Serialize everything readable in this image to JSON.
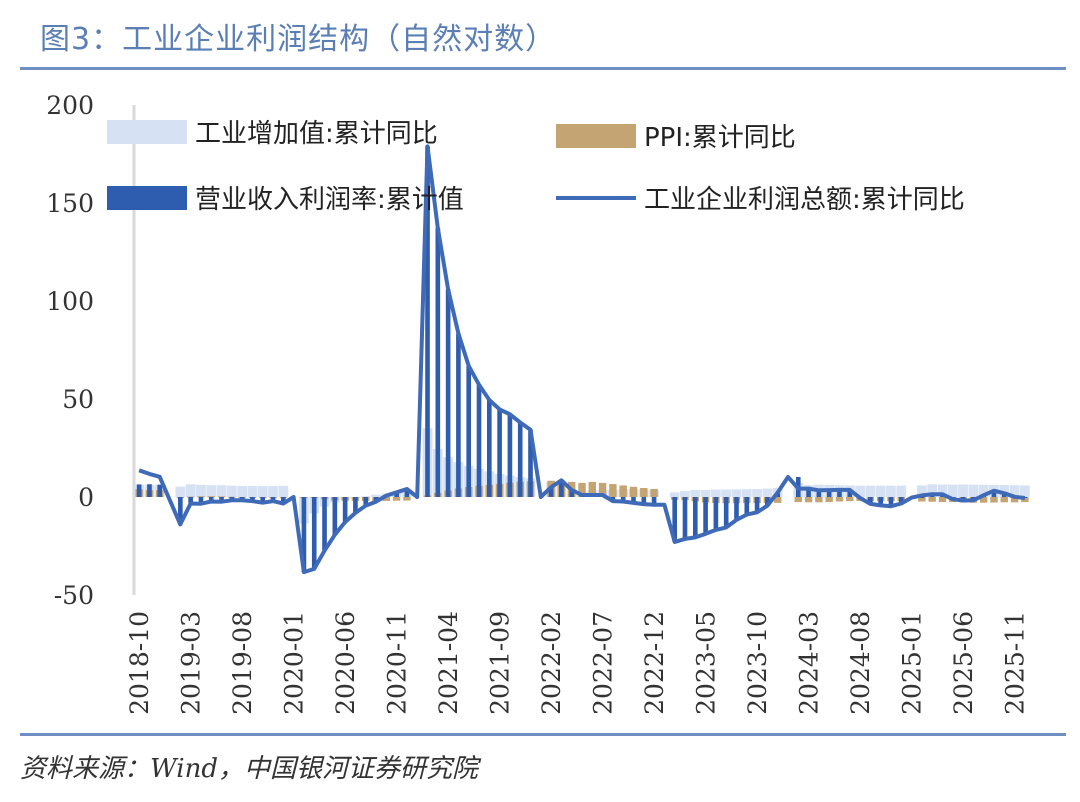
{
  "title": "图3：工业企业利润结构（自然对数）",
  "source": "资料来源：Wind，中国银河证券研究院",
  "colors": {
    "industrial_added_value": "#d6e2f3",
    "ppi": "#c4a472",
    "operating_margin": "#2e5cae",
    "total_profit": "#3f6ab8",
    "rule": "#6f8fc2",
    "axis": "#d9d9d9"
  },
  "chart_data": {
    "type": "bar",
    "x_tick_labels": [
      "2018-10",
      "2019-03",
      "2019-08",
      "2020-01",
      "2020-06",
      "2020-11",
      "2021-04",
      "2021-09",
      "2022-02",
      "2022-07",
      "2022-12",
      "2023-05",
      "2023-10",
      "2024-03",
      "2024-08",
      "2025-01",
      "2025-06",
      "2025-11"
    ],
    "y_tick_labels": [
      "200",
      "150",
      "100",
      "50",
      "0",
      "-50"
    ],
    "ylim": [
      -50,
      200
    ],
    "legend": {
      "added_value": "工业增加值:累计同比",
      "ppi": "PPI:累计同比",
      "margin": "营业收入利润率:累计值",
      "profit": "工业企业利润总额:累计同比"
    },
    "x": [
      "2018-10",
      "2018-11",
      "2018-12",
      "2019-01",
      "2019-02",
      "2019-03",
      "2019-04",
      "2019-05",
      "2019-06",
      "2019-07",
      "2019-08",
      "2019-09",
      "2019-10",
      "2019-11",
      "2019-12",
      "2020-01",
      "2020-02",
      "2020-03",
      "2020-04",
      "2020-05",
      "2020-06",
      "2020-07",
      "2020-08",
      "2020-09",
      "2020-10",
      "2020-11",
      "2020-12",
      "2021-01",
      "2021-02",
      "2021-03",
      "2021-04",
      "2021-05",
      "2021-06",
      "2021-07",
      "2021-08",
      "2021-09",
      "2021-10",
      "2021-11",
      "2021-12",
      "2022-01",
      "2022-02",
      "2022-03",
      "2022-04",
      "2022-05",
      "2022-06",
      "2022-07",
      "2022-08",
      "2022-09",
      "2022-10",
      "2022-11",
      "2022-12",
      "2023-01",
      "2023-02",
      "2023-03",
      "2023-04",
      "2023-05",
      "2023-06",
      "2023-07",
      "2023-08",
      "2023-09",
      "2023-10",
      "2023-11",
      "2023-12",
      "2024-01",
      "2024-02",
      "2024-03",
      "2024-04",
      "2024-05",
      "2024-06",
      "2024-07",
      "2024-08",
      "2024-09",
      "2024-10",
      "2024-11",
      "2024-12",
      "2025-01",
      "2025-02",
      "2025-03",
      "2025-04",
      "2025-05",
      "2025-06",
      "2025-07",
      "2025-08",
      "2025-09",
      "2025-10",
      "2025-11",
      "2025-12"
    ],
    "series": [
      {
        "name": "工业增加值:累计同比",
        "type": "bar",
        "values": [
          6.4,
          6.3,
          6.2,
          null,
          5.3,
          6.5,
          6.2,
          6.0,
          6.0,
          5.8,
          5.6,
          5.6,
          5.6,
          5.6,
          5.7,
          null,
          -13.5,
          -8.4,
          -4.9,
          -2.8,
          -1.3,
          -0.4,
          0.4,
          1.2,
          1.8,
          2.3,
          2.8,
          null,
          35.1,
          24.5,
          20.3,
          17.8,
          15.9,
          14.4,
          13.1,
          11.8,
          10.9,
          10.1,
          9.6,
          null,
          7.5,
          6.5,
          4.0,
          3.3,
          3.4,
          3.5,
          3.6,
          3.9,
          4.0,
          3.8,
          3.6,
          null,
          2.4,
          3.0,
          3.6,
          3.6,
          3.8,
          3.8,
          3.9,
          4.0,
          4.1,
          4.3,
          4.6,
          null,
          7.0,
          6.1,
          6.3,
          6.2,
          6.0,
          5.9,
          5.8,
          5.8,
          5.8,
          5.8,
          5.8,
          null,
          5.9,
          6.5,
          6.4,
          6.3,
          6.4,
          6.3,
          6.2,
          6.2,
          6.1,
          6.0,
          5.9
        ]
      },
      {
        "name": "PPI:累计同比",
        "type": "bar",
        "values": [
          4.0,
          3.5,
          3.5,
          null,
          0.0,
          0.2,
          0.4,
          0.4,
          0.3,
          0.1,
          0.0,
          -0.3,
          -0.5,
          -0.6,
          -0.3,
          null,
          -0.2,
          -0.6,
          -1.2,
          -1.7,
          -1.9,
          -2.0,
          -2.0,
          -2.0,
          -2.0,
          -1.9,
          -1.8,
          null,
          0.8,
          2.1,
          3.3,
          4.4,
          5.1,
          5.7,
          6.2,
          6.7,
          7.3,
          7.9,
          8.1,
          null,
          8.3,
          8.1,
          7.7,
          7.2,
          7.7,
          7.2,
          6.6,
          5.9,
          5.2,
          4.6,
          4.1,
          null,
          -1.4,
          -1.6,
          -2.2,
          -2.8,
          -3.1,
          -3.2,
          -3.2,
          -3.1,
          -3.1,
          -3.0,
          -3.0,
          null,
          -2.6,
          -2.7,
          -2.7,
          -2.6,
          -2.3,
          -2.1,
          -2.0,
          -2.0,
          -2.1,
          -2.1,
          -2.2,
          null,
          -2.3,
          -2.4,
          -2.6,
          -2.6,
          -2.8,
          -2.9,
          -2.9,
          -2.8,
          -2.7,
          -2.7,
          -2.6
        ]
      },
      {
        "name": "营业收入利润率:累计值",
        "type": "bar",
        "values": [
          6.4,
          6.5,
          6.3,
          null,
          -14.0,
          -3.3,
          -3.4,
          -2.3,
          -2.4,
          -1.7,
          -1.7,
          -2.1,
          -2.9,
          -2.1,
          -3.3,
          null,
          -38.3,
          -36.7,
          -27.4,
          -19.3,
          -12.8,
          -8.1,
          -4.4,
          -2.4,
          0.7,
          2.4,
          4.1,
          null,
          178.9,
          137.3,
          106.0,
          83.4,
          66.9,
          57.3,
          49.5,
          44.7,
          42.2,
          38.0,
          34.3,
          null,
          5.0,
          8.5,
          3.5,
          1.0,
          1.0,
          1.0,
          -2.1,
          -2.3,
          -3.0,
          -3.6,
          -4.0,
          null,
          -22.9,
          -21.4,
          -20.6,
          -18.8,
          -16.8,
          -15.5,
          -11.7,
          -9.0,
          -7.8,
          -4.4,
          2.3,
          null,
          10.2,
          4.3,
          4.3,
          3.4,
          3.5,
          3.6,
          -0.5,
          -3.5,
          -4.3,
          -4.7,
          -3.3,
          null,
          -0.3,
          0.8,
          1.4,
          -1.1,
          -1.8,
          -1.7,
          0.9,
          3.2,
          1.9,
          0.1,
          -0.5
        ]
      },
      {
        "name": "工业企业利润总额:累计同比",
        "type": "line",
        "values": [
          13.6,
          11.8,
          10.3,
          null,
          -14.0,
          -3.3,
          -3.4,
          -2.3,
          -2.4,
          -1.7,
          -1.7,
          -2.1,
          -2.9,
          -2.1,
          -3.3,
          0.0,
          -38.3,
          -36.7,
          -27.4,
          -19.3,
          -12.8,
          -8.1,
          -4.4,
          -2.4,
          0.7,
          2.4,
          4.1,
          0.0,
          178.9,
          137.3,
          106.0,
          83.4,
          66.9,
          57.3,
          49.5,
          44.7,
          42.2,
          38.0,
          34.3,
          0.0,
          5.0,
          8.5,
          3.5,
          1.0,
          1.0,
          1.0,
          -2.1,
          -2.3,
          -3.0,
          -3.6,
          -4.0,
          -4.0,
          -22.9,
          -21.4,
          -20.6,
          -18.8,
          -16.8,
          -15.5,
          -11.7,
          -9.0,
          -7.8,
          -4.4,
          2.3,
          10.2,
          4.3,
          4.3,
          3.4,
          3.5,
          3.6,
          3.6,
          -0.5,
          -3.5,
          -4.3,
          -4.7,
          -3.3,
          -0.3,
          0.8,
          1.4,
          1.4,
          -1.1,
          -1.8,
          -1.7,
          0.9,
          3.2,
          1.9,
          0.1,
          -0.5
        ]
      }
    ]
  }
}
